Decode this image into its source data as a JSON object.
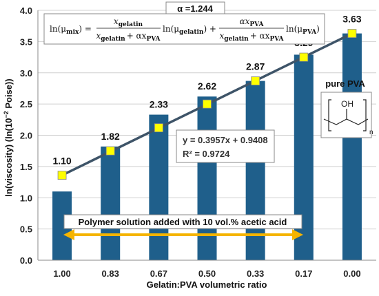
{
  "chart_data": {
    "type": "bar",
    "xlabel": "Gelatin:PVA volumetric ratio",
    "ylabel_main": "ln(viscosity) (ln(10",
    "ylabel_sup": "−2",
    "ylabel_end": " Poise))",
    "categories": [
      "1.00",
      "0.83",
      "0.67",
      "0.50",
      "0.33",
      "0.17",
      "0.00"
    ],
    "values": [
      1.1,
      1.82,
      2.33,
      2.62,
      2.87,
      3.29,
      3.63
    ],
    "value_labels": [
      "1.10",
      "1.82",
      "2.33",
      "2.62",
      "2.87",
      "3.29",
      "3.63"
    ],
    "model_points": [
      1.36,
      1.75,
      2.12,
      2.5,
      2.87,
      3.25,
      3.63
    ],
    "ylim": [
      0.0,
      4.0
    ],
    "yticks": [
      "0.0",
      "0.5",
      "1.0",
      "1.5",
      "2.0",
      "2.5",
      "3.0",
      "3.5",
      "4.0"
    ],
    "trendline": {
      "slope": 0.3957,
      "intercept": 0.9408
    },
    "fit_equation": "y = 0.3957x + 0.9408",
    "fit_r2": "R² = 0.9724",
    "alpha_label": "α =1.244",
    "formula": {
      "lhs": "ln(μ",
      "lhs_sub": "mix",
      "eq": ") =",
      "t1_num": "x",
      "t1_num_sub": "gelatin",
      "t1_den_a": "x",
      "t1_den_a_sub": "gelatin",
      "t1_den_b": "+ αx",
      "t1_den_b_sub": "PVA",
      "t1_ln": "ln(μ",
      "t1_ln_sub": "gelatin",
      "t1_close": ") +",
      "t2_num": "αx",
      "t2_num_sub": "PVA",
      "t2_ln": "ln(μ",
      "t2_ln_sub": "PVA",
      "t2_close": ")"
    },
    "annotation": "Polymer solution added with 10 vol.% acetic acid",
    "pure_pva_label": "pure PVA",
    "structure_oh": "OH",
    "structure_n": "n",
    "colors": {
      "bar": "#1f5f8b",
      "trendline": "#3e5468",
      "marker": "#ffff00",
      "arrow": "#f5b400",
      "grid": "#d0d0d0"
    }
  }
}
